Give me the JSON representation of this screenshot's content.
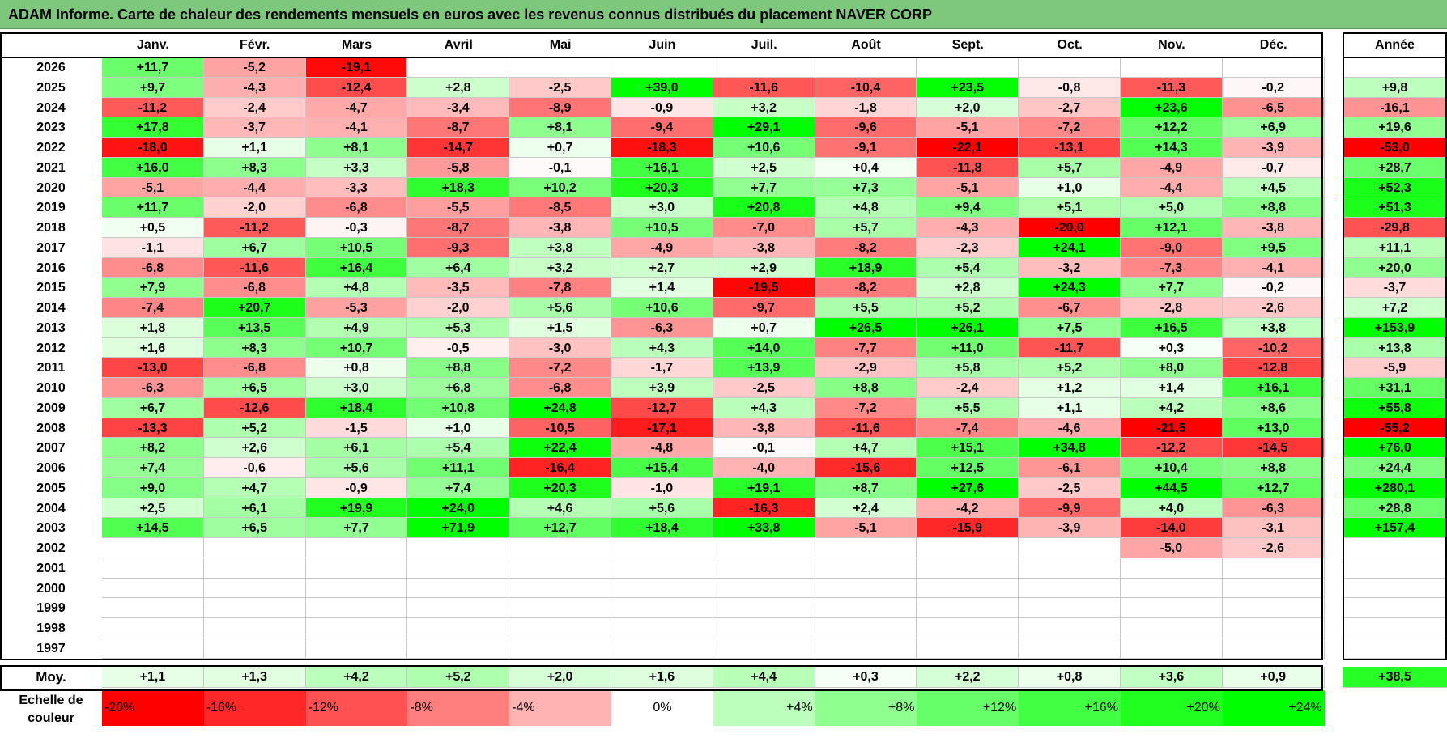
{
  "title": "ADAM Informe. Carte de chaleur des rendements mensuels en euros avec les revenus connus distribués du placement NAVER CORP",
  "months": [
    "Janv.",
    "Févr.",
    "Mars",
    "Avril",
    "Mai",
    "Juin",
    "Juil.",
    "Août",
    "Sept.",
    "Oct.",
    "Nov.",
    "Déc."
  ],
  "annual_header": "Année",
  "average_label": "Moy.",
  "scale_label": "Echelle de couleur",
  "scale": [
    "-20%",
    "-16%",
    "-12%",
    "-8%",
    "-4%",
    "0%",
    "+4%",
    "+8%",
    "+12%",
    "+16%",
    "+20%",
    "+24%"
  ],
  "scale_values": [
    -20,
    -16,
    -12,
    -8,
    -4,
    0,
    4,
    8,
    12,
    16,
    20,
    24
  ],
  "chart_data": {
    "type": "heatmap",
    "title": "ADAM Informe. Carte de chaleur des rendements mensuels en euros avec les revenus connus distribués du placement NAVER CORP",
    "columns": [
      "Janv.",
      "Févr.",
      "Mars",
      "Avril",
      "Mai",
      "Juin",
      "Juil.",
      "Août",
      "Sept.",
      "Oct.",
      "Nov.",
      "Déc."
    ],
    "rows": [
      {
        "year": "2026",
        "values": [
          "+11,7",
          "-5,2",
          "-19,1",
          "",
          "",
          "",
          "",
          "",
          "",
          "",
          "",
          ""
        ],
        "annual": ""
      },
      {
        "year": "2025",
        "values": [
          "+9,7",
          "-4,3",
          "-12,4",
          "+2,8",
          "-2,5",
          "+39,0",
          "-11,6",
          "-10,4",
          "+23,5",
          "-0,8",
          "-11,3",
          "-0,2"
        ],
        "annual": "+9,8"
      },
      {
        "year": "2024",
        "values": [
          "-11,2",
          "-2,4",
          "-4,7",
          "-3,4",
          "-8,9",
          "-0,9",
          "+3,2",
          "-1,8",
          "+2,0",
          "-2,7",
          "+23,6",
          "-6,5"
        ],
        "annual": "-16,1"
      },
      {
        "year": "2023",
        "values": [
          "+17,8",
          "-3,7",
          "-4,1",
          "-8,7",
          "+8,1",
          "-9,4",
          "+29,1",
          "-9,6",
          "-5,1",
          "-7,2",
          "+12,2",
          "+6,9"
        ],
        "annual": "+19,6"
      },
      {
        "year": "2022",
        "values": [
          "-18,0",
          "+1,1",
          "+8,1",
          "-14,7",
          "+0,7",
          "-18,3",
          "+10,6",
          "-9,1",
          "-22,1",
          "-13,1",
          "+14,3",
          "-3,9"
        ],
        "annual": "-53,0"
      },
      {
        "year": "2021",
        "values": [
          "+16,0",
          "+8,3",
          "+3,3",
          "-5,8",
          "-0,1",
          "+16,1",
          "+2,5",
          "+0,4",
          "-11,8",
          "+5,7",
          "-4,9",
          "-0,7"
        ],
        "annual": "+28,7"
      },
      {
        "year": "2020",
        "values": [
          "-5,1",
          "-4,4",
          "-3,3",
          "+18,3",
          "+10,2",
          "+20,3",
          "+7,7",
          "+7,3",
          "-5,1",
          "+1,0",
          "-4,4",
          "+4,5"
        ],
        "annual": "+52,3"
      },
      {
        "year": "2019",
        "values": [
          "+11,7",
          "-2,0",
          "-6,8",
          "-5,5",
          "-8,5",
          "+3,0",
          "+20,8",
          "+4,8",
          "+9,4",
          "+5,1",
          "+5,0",
          "+8,8"
        ],
        "annual": "+51,3"
      },
      {
        "year": "2018",
        "values": [
          "+0,5",
          "-11,2",
          "-0,3",
          "-8,7",
          "-3,8",
          "+10,5",
          "-7,0",
          "+5,7",
          "-4,3",
          "-20,0",
          "+12,1",
          "-3,8"
        ],
        "annual": "-29,8"
      },
      {
        "year": "2017",
        "values": [
          "-1,1",
          "+6,7",
          "+10,5",
          "-9,3",
          "+3,8",
          "-4,9",
          "-3,8",
          "-8,2",
          "-2,3",
          "+24,1",
          "-9,0",
          "+9,5"
        ],
        "annual": "+11,1"
      },
      {
        "year": "2016",
        "values": [
          "-6,8",
          "-11,6",
          "+16,4",
          "+6,4",
          "+3,2",
          "+2,7",
          "+2,9",
          "+18,9",
          "+5,4",
          "-3,2",
          "-7,3",
          "-4,1"
        ],
        "annual": "+20,0"
      },
      {
        "year": "2015",
        "values": [
          "+7,9",
          "-6,8",
          "+4,8",
          "-3,5",
          "-7,8",
          "+1,4",
          "-19,5",
          "-8,2",
          "+2,8",
          "+24,3",
          "+7,7",
          "-0,2"
        ],
        "annual": "-3,7"
      },
      {
        "year": "2014",
        "values": [
          "-7,4",
          "+20,7",
          "-5,3",
          "-2,0",
          "+5,6",
          "+10,6",
          "-9,7",
          "+5,5",
          "+5,2",
          "-6,7",
          "-2,8",
          "-2,6"
        ],
        "annual": "+7,2"
      },
      {
        "year": "2013",
        "values": [
          "+1,8",
          "+13,5",
          "+4,9",
          "+5,3",
          "+1,5",
          "-6,3",
          "+0,7",
          "+26,5",
          "+26,1",
          "+7,5",
          "+16,5",
          "+3,8"
        ],
        "annual": "+153,9"
      },
      {
        "year": "2012",
        "values": [
          "+1,6",
          "+8,3",
          "+10,7",
          "-0,5",
          "-3,0",
          "+4,3",
          "+14,0",
          "-7,7",
          "+11,0",
          "-11,7",
          "+0,3",
          "-10,2"
        ],
        "annual": "+13,8"
      },
      {
        "year": "2011",
        "values": [
          "-13,0",
          "-6,8",
          "+0,8",
          "+8,8",
          "-7,2",
          "-1,7",
          "+13,9",
          "-2,9",
          "+5,8",
          "+5,2",
          "+8,0",
          "-12,8"
        ],
        "annual": "-5,9"
      },
      {
        "year": "2010",
        "values": [
          "-6,3",
          "+6,5",
          "+3,0",
          "+6,8",
          "-6,8",
          "+3,9",
          "-2,5",
          "+8,8",
          "-2,4",
          "+1,2",
          "+1,4",
          "+16,1"
        ],
        "annual": "+31,1"
      },
      {
        "year": "2009",
        "values": [
          "+6,7",
          "-12,6",
          "+18,4",
          "+10,8",
          "+24,8",
          "-12,7",
          "+4,3",
          "-7,2",
          "+5,5",
          "+1,1",
          "+4,2",
          "+8,6"
        ],
        "annual": "+55,8"
      },
      {
        "year": "2008",
        "values": [
          "-13,3",
          "+5,2",
          "-1,5",
          "+1,0",
          "-10,5",
          "-17,1",
          "-3,8",
          "-11,6",
          "-7,4",
          "-4,6",
          "-21,5",
          "+13,0"
        ],
        "annual": "-55,2"
      },
      {
        "year": "2007",
        "values": [
          "+8,2",
          "+2,6",
          "+6,1",
          "+5,4",
          "+22,4",
          "-4,8",
          "-0,1",
          "+4,7",
          "+15,1",
          "+34,8",
          "-12,2",
          "-14,5"
        ],
        "annual": "+76,0"
      },
      {
        "year": "2006",
        "values": [
          "+7,4",
          "-0,6",
          "+5,6",
          "+11,1",
          "-16,4",
          "+15,4",
          "-4,0",
          "-15,6",
          "+12,5",
          "-6,1",
          "+10,4",
          "+8,8"
        ],
        "annual": "+24,4"
      },
      {
        "year": "2005",
        "values": [
          "+9,0",
          "+4,7",
          "-0,9",
          "+7,4",
          "+20,3",
          "-1,0",
          "+19,1",
          "+8,7",
          "+27,6",
          "-2,5",
          "+44,5",
          "+12,7"
        ],
        "annual": "+280,1"
      },
      {
        "year": "2004",
        "values": [
          "+2,5",
          "+6,1",
          "+19,9",
          "+24,0",
          "+4,6",
          "+5,6",
          "-16,3",
          "+2,4",
          "-4,2",
          "-9,9",
          "+4,0",
          "-6,3"
        ],
        "annual": "+28,8"
      },
      {
        "year": "2003",
        "values": [
          "+14,5",
          "+6,5",
          "+7,7",
          "+71,9",
          "+12,7",
          "+18,4",
          "+33,8",
          "-5,1",
          "-15,9",
          "-3,9",
          "-14,0",
          "-3,1"
        ],
        "annual": "+157,4"
      },
      {
        "year": "2002",
        "values": [
          "",
          "",
          "",
          "",
          "",
          "",
          "",
          "",
          "",
          "",
          "-5,0",
          "-2,6"
        ],
        "annual": ""
      },
      {
        "year": "2001",
        "values": [
          "",
          "",
          "",
          "",
          "",
          "",
          "",
          "",
          "",
          "",
          "",
          ""
        ],
        "annual": ""
      },
      {
        "year": "2000",
        "values": [
          "",
          "",
          "",
          "",
          "",
          "",
          "",
          "",
          "",
          "",
          "",
          ""
        ],
        "annual": ""
      },
      {
        "year": "1999",
        "values": [
          "",
          "",
          "",
          "",
          "",
          "",
          "",
          "",
          "",
          "",
          "",
          ""
        ],
        "annual": ""
      },
      {
        "year": "1998",
        "values": [
          "",
          "",
          "",
          "",
          "",
          "",
          "",
          "",
          "",
          "",
          "",
          ""
        ],
        "annual": ""
      },
      {
        "year": "1997",
        "values": [
          "",
          "",
          "",
          "",
          "",
          "",
          "",
          "",
          "",
          "",
          "",
          ""
        ],
        "annual": ""
      }
    ],
    "averages": [
      "+1,1",
      "+1,3",
      "+4,2",
      "+5,2",
      "+2,0",
      "+1,6",
      "+4,4",
      "+0,3",
      "+2,2",
      "+0,8",
      "+3,6",
      "+0,9"
    ],
    "average_annual": "+38,5"
  }
}
